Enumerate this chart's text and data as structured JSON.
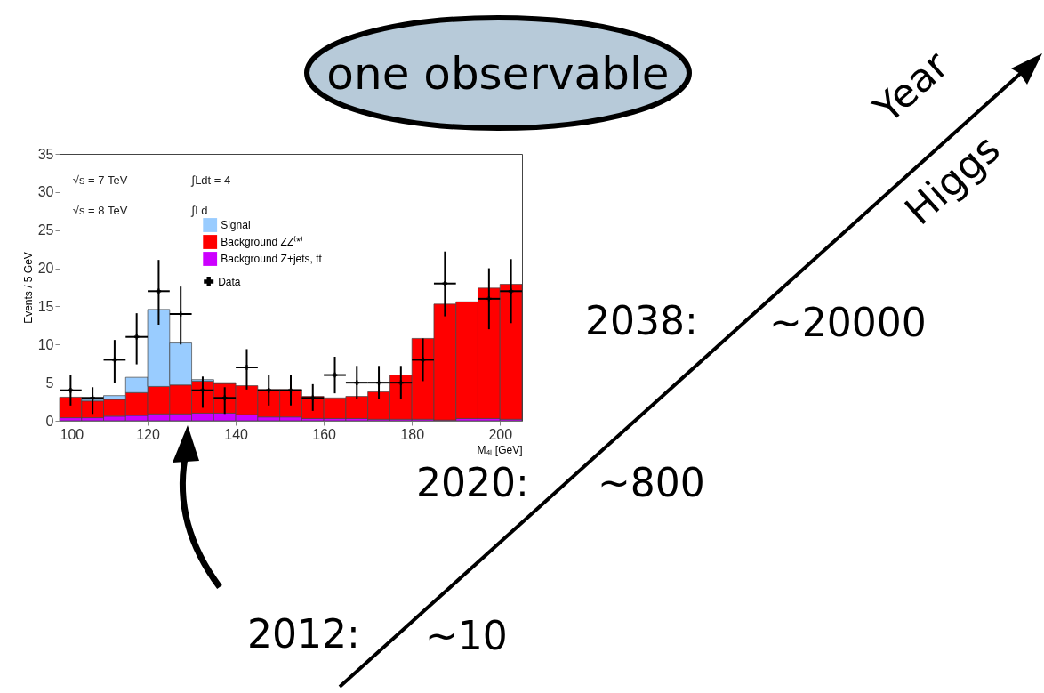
{
  "chart_data": {
    "type": "bar",
    "ylabel": "Events / 5 GeV",
    "xlabel": "M₄ₗ [GeV]",
    "x": [
      102.5,
      107.5,
      112.5,
      117.5,
      122.5,
      127.5,
      132.5,
      137.5,
      142.5,
      147.5,
      152.5,
      157.5,
      162.5,
      167.5,
      172.5,
      177.5,
      182.5,
      187.5,
      192.5,
      197.5,
      202.5
    ],
    "stacked": true,
    "series": [
      {
        "name": "Background Z+jets, tt̄",
        "color": "#cc00ff",
        "values": [
          0.4,
          0.4,
          0.6,
          0.7,
          0.9,
          0.9,
          1.0,
          1.0,
          0.8,
          0.5,
          0.5,
          0.3,
          0.3,
          0.3,
          0.2,
          0.2,
          0.2,
          0.1,
          0.3,
          0.3,
          0.2
        ]
      },
      {
        "name": "Background ZZ⁽*⁾",
        "color": "#ff0000",
        "values": [
          2.7,
          2.2,
          2.2,
          3.0,
          3.6,
          3.8,
          4.2,
          3.9,
          3.8,
          3.6,
          3.6,
          2.9,
          2.7,
          2.9,
          3.6,
          5.8,
          10.6,
          15.2,
          15.3,
          17.1,
          17.7
        ]
      },
      {
        "name": "Signal",
        "color": "#99ccff",
        "values": [
          0,
          0.2,
          0.5,
          2.0,
          10.1,
          5.5,
          0.2,
          0.1,
          0,
          0,
          0,
          0,
          0,
          0,
          0,
          0,
          0,
          0,
          0,
          0,
          0
        ]
      },
      {
        "name": "Data",
        "type": "scatter",
        "color": "#000000",
        "x": [
          102.5,
          107.5,
          112.5,
          117.5,
          122.5,
          127.5,
          132.5,
          137.5,
          142.5,
          147.5,
          152.5,
          157.5,
          162.5,
          167.5,
          172.5,
          177.5,
          182.5,
          187.5,
          192.5,
          197.5,
          202.5
        ],
        "values": [
          4,
          3,
          8,
          11,
          17,
          14,
          4,
          3,
          7,
          4,
          4,
          3,
          6,
          5,
          5,
          5,
          8,
          18,
          null,
          16,
          17
        ],
        "errors": [
          [
            2,
            6
          ],
          [
            0.9,
            4.4
          ],
          [
            4.9,
            10.6
          ],
          [
            7.4,
            14.1
          ],
          [
            12.6,
            21.1
          ],
          [
            10,
            17.6
          ],
          [
            1.7,
            5.8
          ],
          [
            0.9,
            4.4
          ],
          [
            4.1,
            9.4
          ],
          [
            2,
            6
          ],
          [
            2,
            6
          ],
          [
            1.3,
            4.8
          ],
          [
            3.6,
            8.4
          ],
          [
            2.8,
            7.2
          ],
          [
            2.8,
            7.2
          ],
          [
            2.8,
            7.2
          ],
          [
            5.2,
            10.8
          ],
          [
            13.7,
            22.2
          ],
          null,
          [
            12,
            20
          ],
          [
            12.8,
            21.2
          ]
        ],
        "xerrors": [
          2.5,
          2.5,
          2.5,
          2.5,
          2.5,
          2.5,
          2.5,
          2.5,
          2.5,
          2.5,
          2.5,
          2.5,
          2.5,
          2.5,
          2.5,
          2.5,
          2.5,
          2.5,
          null,
          2.5,
          2.5
        ]
      }
    ],
    "xlim": [
      100,
      205
    ],
    "xticks": [
      100,
      120,
      140,
      160,
      180,
      200
    ],
    "ylim": [
      0,
      35
    ],
    "yticks": [
      0,
      5,
      10,
      15,
      20,
      25,
      30,
      35
    ],
    "legend": "top",
    "annotations": [
      "√s = 7 TeV",
      "∫Ldt = 4",
      "√s = 8 TeV",
      "∫Ld",
      "one observable",
      "Year",
      "Higgs",
      "2012:",
      "~10",
      "2020:",
      "~800",
      "2038:",
      "~20000"
    ]
  }
}
